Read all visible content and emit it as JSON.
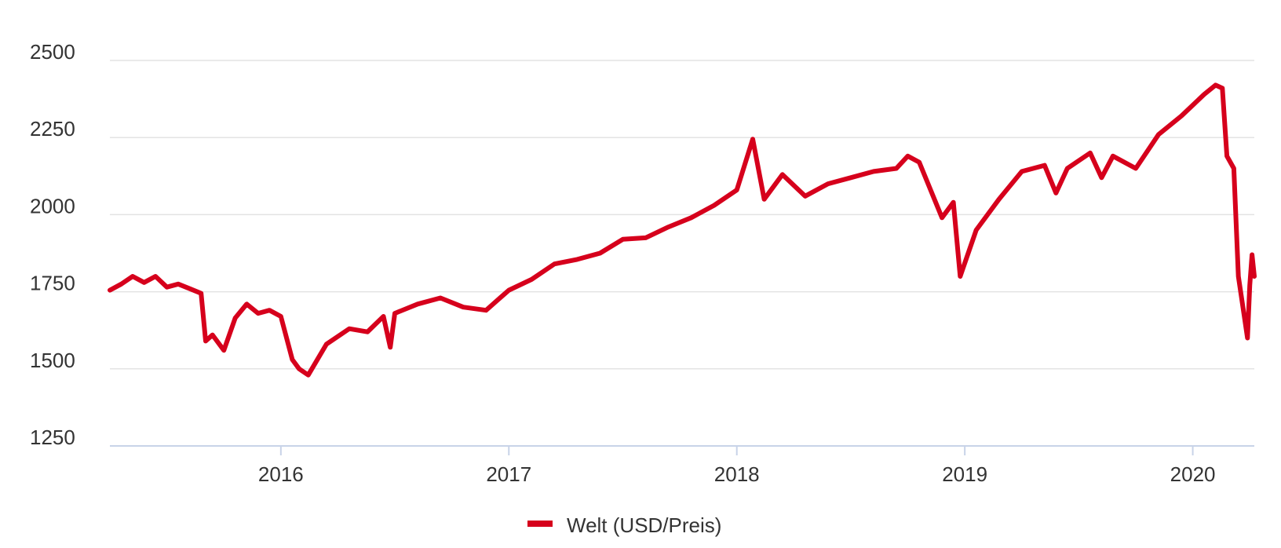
{
  "chart_data": {
    "type": "line",
    "title": "",
    "xlabel": "",
    "ylabel": "",
    "ylim": [
      1250,
      2500
    ],
    "yticks": [
      1250,
      1500,
      1750,
      2000,
      2250,
      2500
    ],
    "xticks": [
      2016,
      2017,
      2018,
      2019,
      2020
    ],
    "xlim": [
      2015.25,
      2020.27
    ],
    "grid": "horizontal",
    "legend_position": "bottom",
    "colors": {
      "series": "#d6001c",
      "grid": "#e3e3e3",
      "axis": "#c8d3e8",
      "text": "#333333"
    },
    "series": [
      {
        "name": "Welt (USD/Preis)",
        "x": [
          2015.25,
          2015.3,
          2015.35,
          2015.4,
          2015.45,
          2015.5,
          2015.55,
          2015.6,
          2015.65,
          2015.67,
          2015.7,
          2015.75,
          2015.8,
          2015.85,
          2015.9,
          2015.95,
          2016.0,
          2016.05,
          2016.08,
          2016.12,
          2016.2,
          2016.3,
          2016.38,
          2016.45,
          2016.48,
          2016.5,
          2016.6,
          2016.7,
          2016.8,
          2016.9,
          2017.0,
          2017.1,
          2017.2,
          2017.3,
          2017.4,
          2017.5,
          2017.6,
          2017.7,
          2017.8,
          2017.9,
          2018.0,
          2018.07,
          2018.12,
          2018.2,
          2018.3,
          2018.4,
          2018.5,
          2018.6,
          2018.7,
          2018.75,
          2018.8,
          2018.85,
          2018.9,
          2018.95,
          2018.98,
          2019.05,
          2019.15,
          2019.25,
          2019.35,
          2019.4,
          2019.45,
          2019.55,
          2019.6,
          2019.65,
          2019.75,
          2019.85,
          2019.95,
          2020.05,
          2020.1,
          2020.13,
          2020.15,
          2020.18,
          2020.2,
          2020.22,
          2020.24,
          2020.25,
          2020.26,
          2020.27
        ],
        "values": [
          1755,
          1775,
          1800,
          1780,
          1800,
          1765,
          1775,
          1760,
          1745,
          1590,
          1610,
          1560,
          1665,
          1710,
          1680,
          1690,
          1670,
          1530,
          1500,
          1480,
          1580,
          1630,
          1620,
          1670,
          1570,
          1680,
          1710,
          1730,
          1700,
          1690,
          1755,
          1790,
          1840,
          1855,
          1875,
          1920,
          1925,
          1960,
          1990,
          2030,
          2080,
          2245,
          2050,
          2130,
          2060,
          2100,
          2120,
          2140,
          2150,
          2190,
          2170,
          2080,
          1990,
          2040,
          1800,
          1950,
          2050,
          2140,
          2160,
          2070,
          2150,
          2200,
          2120,
          2190,
          2150,
          2260,
          2320,
          2390,
          2420,
          2410,
          2190,
          2150,
          1800,
          1700,
          1600,
          1770,
          1870,
          1800
        ]
      }
    ]
  }
}
